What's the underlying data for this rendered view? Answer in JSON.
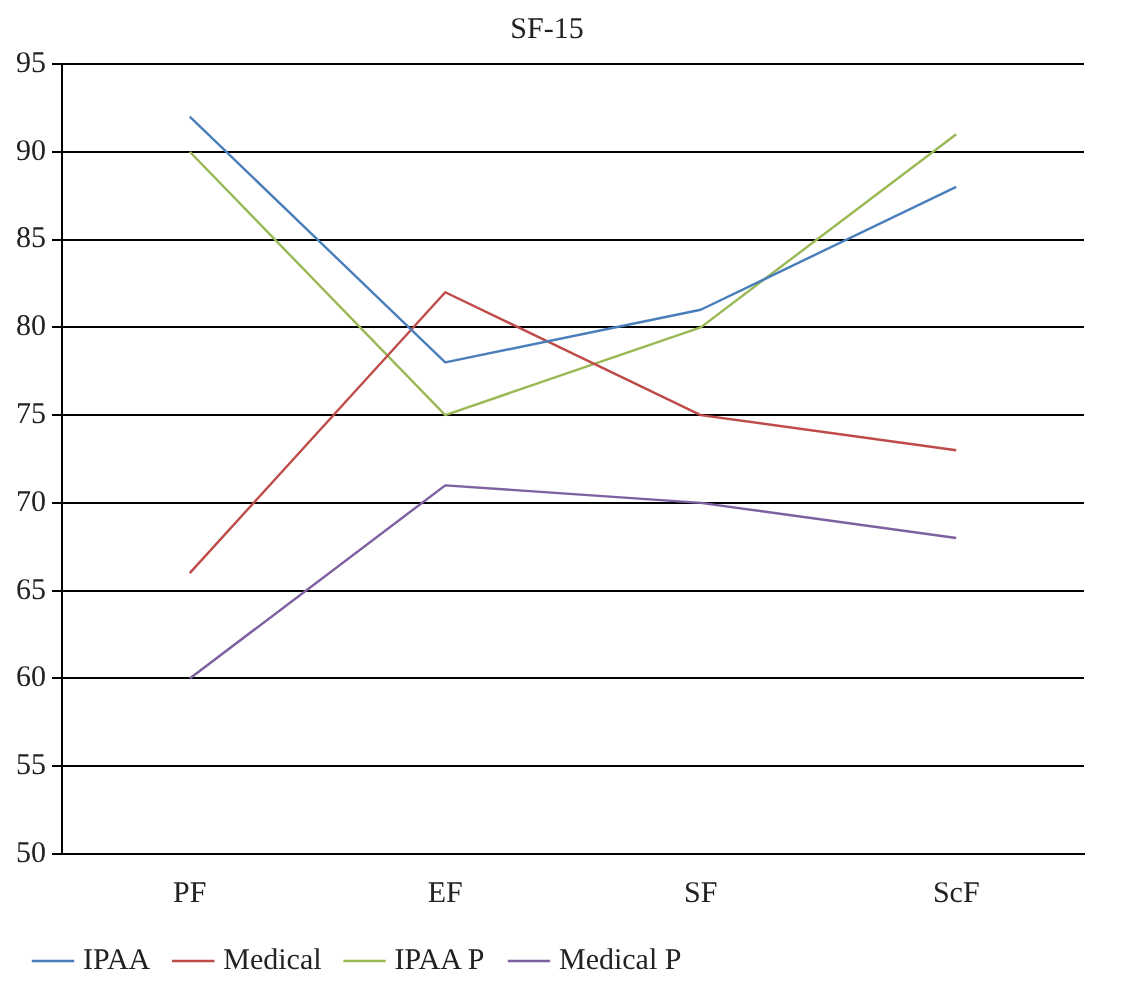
{
  "chart_data": {
    "type": "line",
    "title": "SF-15",
    "categories": [
      "PF",
      "EF",
      "SF",
      "ScF"
    ],
    "series": [
      {
        "name": "IPAA",
        "color": "#4a7ebb",
        "values": [
          92,
          78,
          81,
          88
        ]
      },
      {
        "name": "Medical",
        "color": "#be4b48",
        "values": [
          66,
          82,
          75,
          73
        ]
      },
      {
        "name": "IPAA P",
        "color": "#98b954",
        "values": [
          90,
          75,
          80,
          91
        ]
      },
      {
        "name": "Medical P",
        "color": "#7d60a0",
        "values": [
          60,
          71,
          70,
          68
        ]
      }
    ],
    "ylim": [
      50,
      95
    ],
    "yticks": [
      50,
      55,
      60,
      65,
      70,
      75,
      80,
      85,
      90,
      95
    ],
    "grid": "y",
    "legend": "bottom",
    "marker": "none",
    "line_style": "solid"
  }
}
